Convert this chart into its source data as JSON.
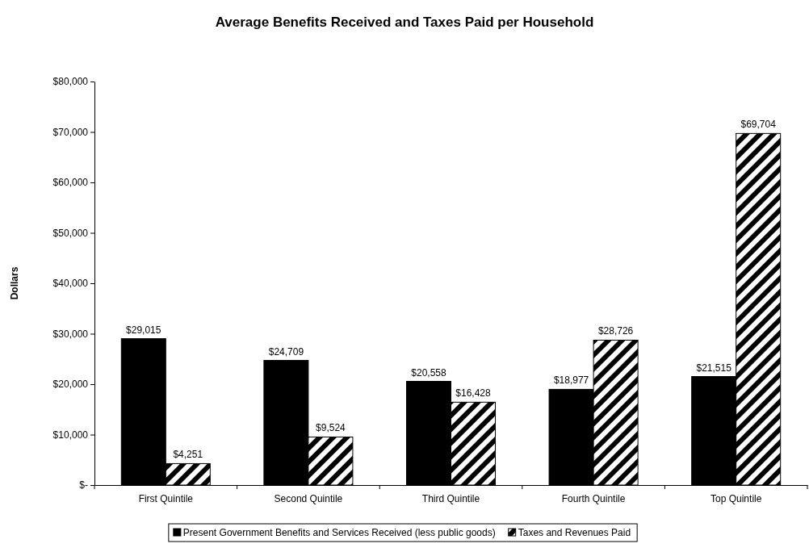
{
  "chart_data": {
    "type": "bar",
    "title": "Average Benefits Received and Taxes Paid per Household",
    "ylabel": "Dollars",
    "categories": [
      "First Quintile",
      "Second Quintile",
      "Third Quintile",
      "Fourth Quintile",
      "Top Quintile"
    ],
    "series": [
      {
        "name": "Present Government Benefits and Services Received (less public goods)",
        "color": "#000000",
        "values": [
          29015,
          24709,
          20558,
          18977,
          21515
        ],
        "value_labels": [
          "$29,015",
          "$24,709",
          "$20,558",
          "$18,977",
          "$21,515"
        ]
      },
      {
        "name": "Taxes and Revenues Paid",
        "color": "#000000",
        "values": [
          4251,
          9524,
          16428,
          28726,
          69704
        ],
        "value_labels": [
          "$4,251",
          "$9,524",
          "$16,428",
          "$28,726",
          "$69,704"
        ]
      }
    ],
    "ylim": [
      0,
      80000
    ],
    "yticks": [
      {
        "value": 0,
        "label": "$-"
      },
      {
        "value": 10000,
        "label": "$10,000"
      },
      {
        "value": 20000,
        "label": "$20,000"
      },
      {
        "value": 30000,
        "label": "$30,000"
      },
      {
        "value": 40000,
        "label": "$40,000"
      },
      {
        "value": 50000,
        "label": "$50,000"
      },
      {
        "value": 60000,
        "label": "$60,000"
      },
      {
        "value": 70000,
        "label": "$70,000"
      },
      {
        "value": 80000,
        "label": "$80,000"
      }
    ],
    "grid": false,
    "legend": "bottom"
  }
}
